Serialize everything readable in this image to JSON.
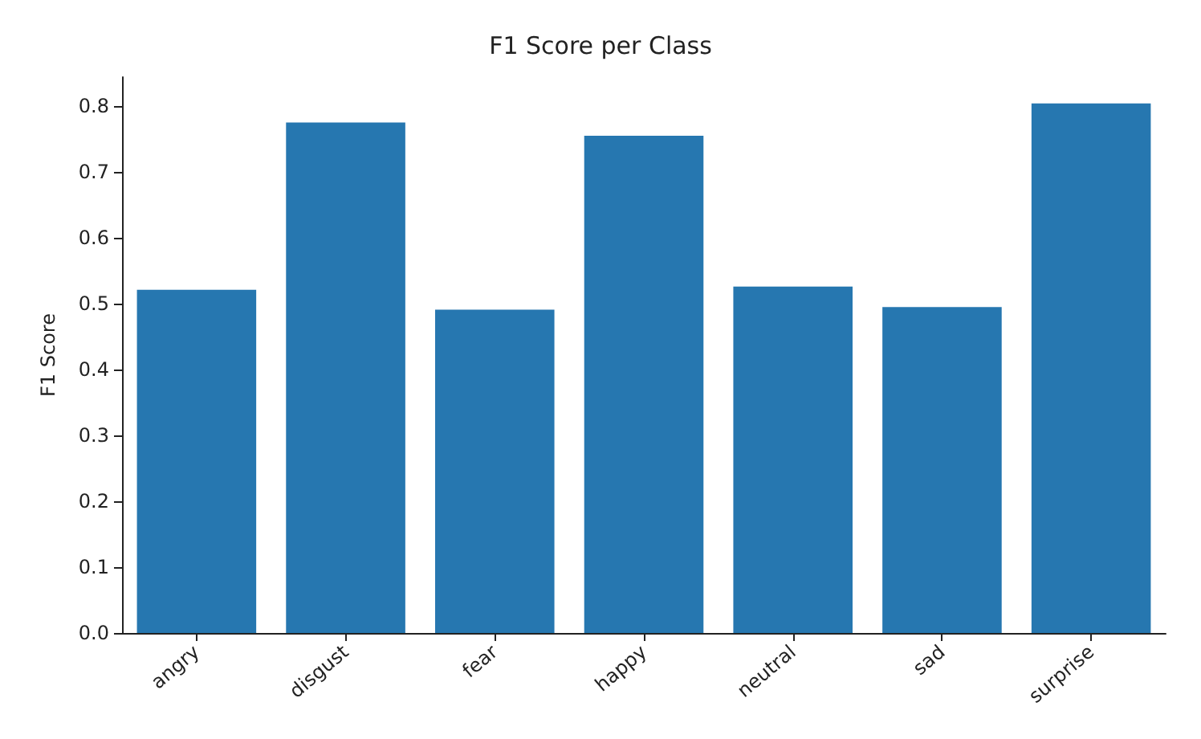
{
  "chart_data": {
    "type": "bar",
    "title": "F1 Score per Class",
    "ylabel": "F1 Score",
    "categories": [
      "angry",
      "disgust",
      "fear",
      "happy",
      "neutral",
      "sad",
      "surprise"
    ],
    "values": [
      0.521,
      0.775,
      0.491,
      0.755,
      0.526,
      0.495,
      0.804
    ],
    "color": "#2677b0",
    "ylim": [
      0,
      0.844
    ],
    "yticks": [
      {
        "value": 0,
        "label": "0.0"
      },
      0.1,
      0.2,
      0.3,
      0.4,
      0.5,
      0.6,
      0.7,
      0.8
    ],
    "grid": false
  }
}
